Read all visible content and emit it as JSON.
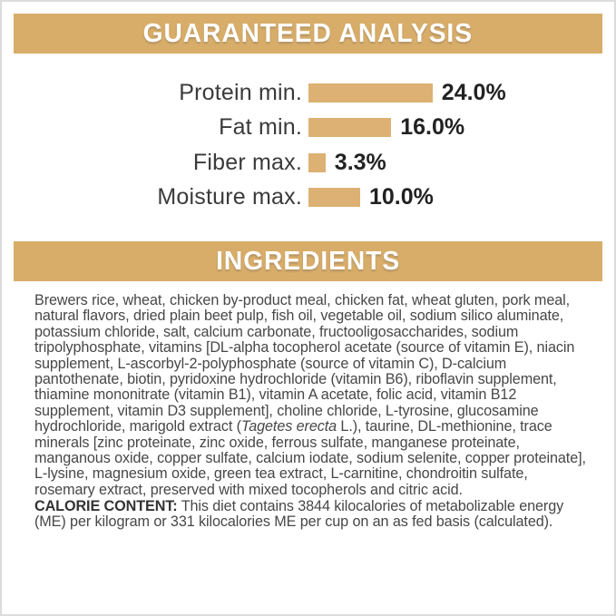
{
  "colors": {
    "banner_gold": "#D8AD69",
    "bar_gold": "#DCB173",
    "banner_text": "#FFFFFF",
    "label_text": "#3A3A3A",
    "value_text": "#222222",
    "body_text": "#474747",
    "frame_border": "#DCDCDC"
  },
  "guaranteed_analysis": {
    "title": "GUARANTEED ANALYSIS",
    "rows": [
      {
        "label": "Protein min.",
        "value_label": "24.0%",
        "pct": 24.0
      },
      {
        "label": "Fat min.",
        "value_label": "16.0%",
        "pct": 16.0
      },
      {
        "label": "Fiber max.",
        "value_label": "3.3%",
        "pct": 3.3
      },
      {
        "label": "Moisture max.",
        "value_label": "10.0%",
        "pct": 10.0
      }
    ]
  },
  "chart_data": {
    "type": "bar",
    "orientation": "horizontal",
    "title": "GUARANTEED ANALYSIS",
    "categories": [
      "Protein min.",
      "Fat min.",
      "Fiber max.",
      "Moisture max."
    ],
    "values": [
      24.0,
      16.0,
      3.3,
      10.0
    ],
    "value_labels": [
      "24.0%",
      "16.0%",
      "3.3%",
      "10.0%"
    ],
    "unit": "%",
    "xlim": [
      0,
      24
    ],
    "grid": false,
    "legend": "none",
    "bar_color": "#DCB173"
  },
  "ingredients": {
    "title": "INGREDIENTS",
    "segments": [
      {
        "style": "normal",
        "text": "Brewers rice, wheat, chicken by-product meal, chicken fat, wheat gluten, pork meal, natural flavors, dried plain beet pulp, fish oil, vegetable oil, sodium silico aluminate, potassium chloride, salt, calcium carbonate, fructooligosaccharides, sodium tripolyphosphate, vitamins [DL-alpha tocopherol acetate (source of vitamin E), niacin supplement, L-ascorbyl-2-polyphosphate (source of vitamin C), D-calcium pantothenate, biotin, pyridoxine hydrochloride (vitamin B6), riboflavin supplement, thiamine mononitrate (vitamin B1), vitamin A acetate, folic acid, vitamin B12 supplement, vitamin D3 supplement], choline chloride, L-tyrosine, glucosamine hydrochloride, marigold extract ("
      },
      {
        "style": "italic",
        "text": "Tagetes erecta"
      },
      {
        "style": "normal",
        "text": " L.), taurine, DL-methionine, trace minerals [zinc proteinate, zinc oxide, ferrous sulfate, manganese proteinate, manganous oxide, copper sulfate, calcium iodate, sodium selenite, copper proteinate], L-lysine, magnesium oxide, green tea extract, L-carnitine, chondroitin sulfate, rosemary extract, preserved with mixed tocopherols and citric acid."
      }
    ]
  },
  "calorie_content": {
    "heading": "CALORIE CONTENT:",
    "text": "This diet contains 3844 kilocalories of metabolizable energy (ME) per kilogram or 331 kilocalories ME per cup on an as fed basis (calculated)."
  }
}
